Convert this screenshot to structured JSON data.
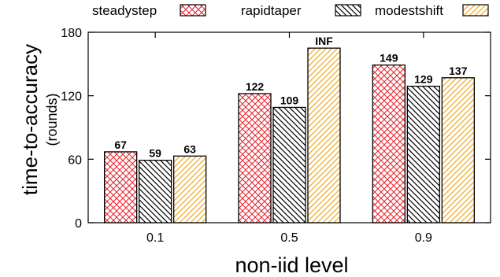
{
  "chart_data": {
    "type": "bar",
    "categories": [
      "0.1",
      "0.5",
      "0.9"
    ],
    "series": [
      {
        "name": "steadystep",
        "values": [
          67,
          122,
          149
        ],
        "labels": [
          "67",
          "122",
          "149"
        ],
        "color": "#e8202a",
        "pattern": "crosshatch"
      },
      {
        "name": "rapidtaper",
        "values": [
          59,
          109,
          129
        ],
        "labels": [
          "59",
          "109",
          "129"
        ],
        "color": "#000000",
        "pattern": "backslash"
      },
      {
        "name": "modestshift",
        "values": [
          63,
          165,
          137
        ],
        "labels": [
          "63",
          "INF",
          "137"
        ],
        "color": "#f0a820",
        "pattern": "slash"
      }
    ],
    "xlabel": "non-iid level",
    "ylabel": "time-to-accuracy",
    "ylabel_unit": "(rounds)",
    "ylim": [
      0,
      180
    ],
    "yticks": [
      0,
      60,
      120,
      180
    ],
    "grid": false,
    "legend_position": "top"
  }
}
